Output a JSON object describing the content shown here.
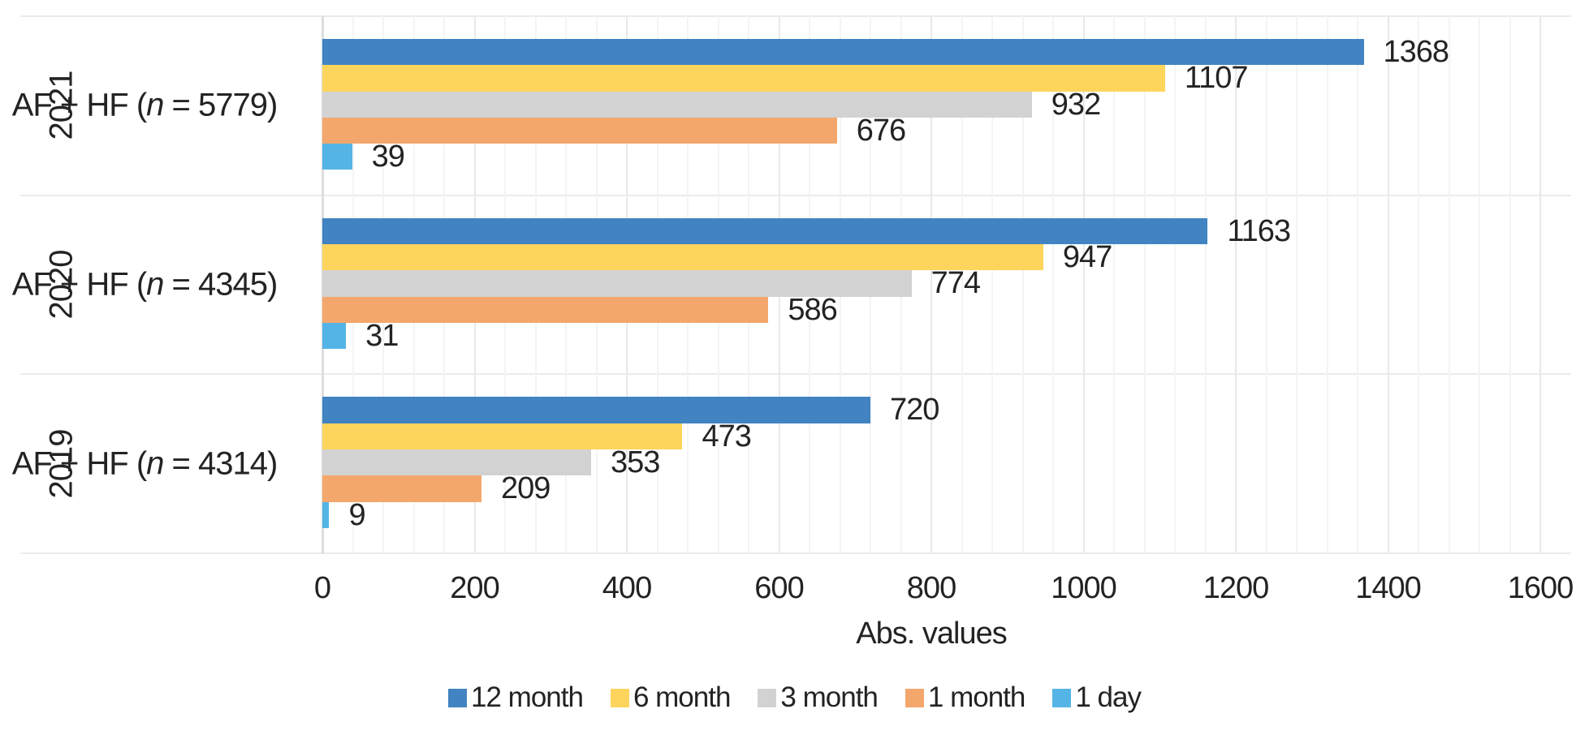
{
  "chart_data": {
    "type": "bar",
    "orientation": "horizontal",
    "title": "",
    "xlabel": "Abs. values",
    "ylabel": "",
    "xlim": [
      0,
      1600
    ],
    "x_major_unit": 200,
    "x_minor_unit": 40,
    "x_ticks": [
      "0",
      "200",
      "400",
      "600",
      "800",
      "1000",
      "1200",
      "1400",
      "1600"
    ],
    "grid": "on",
    "legend_position": "bottom",
    "categories": [
      {
        "year": "2021",
        "label_pre": "AF + HF (",
        "label_var": "n",
        "label_post": " = 5779)"
      },
      {
        "year": "2020",
        "label_pre": "AF + HF (",
        "label_var": "n",
        "label_post": " = 4345)"
      },
      {
        "year": "2019",
        "label_pre": "AF + HF (",
        "label_var": "n",
        "label_post": " = 4314)"
      }
    ],
    "series": [
      {
        "name": "12 month",
        "color": "#4184C1",
        "values": [
          1368,
          1163,
          720
        ]
      },
      {
        "name": "6 month",
        "color": "#FDD55C",
        "values": [
          1107,
          947,
          473
        ]
      },
      {
        "name": "3 month",
        "color": "#D2D2D2",
        "values": [
          932,
          774,
          353
        ]
      },
      {
        "name": "1 month",
        "color": "#F4A76C",
        "values": [
          676,
          586,
          209
        ]
      },
      {
        "name": "1 day",
        "color": "#55B4E6",
        "values": [
          39,
          31,
          9
        ]
      }
    ]
  },
  "colors": {
    "text": "#232323",
    "gridline_minor": "#f4f4f4",
    "gridline_major": "#e9e9e9",
    "axis_line": "#dddddd",
    "group_divider": "#ebebeb",
    "background": "#ffffff"
  }
}
